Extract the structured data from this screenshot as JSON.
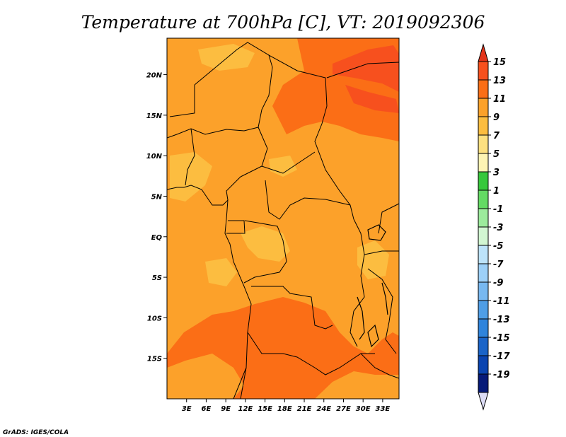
{
  "title": "Temperature at 700hPa [C], VT: 2019092306",
  "credit": "GrADS: IGES/COLA",
  "map": {
    "lon_range": [
      0,
      35.5
    ],
    "lat_range": [
      -20,
      24.5
    ],
    "y_ticks": [
      {
        "lat": 20,
        "label": "20N"
      },
      {
        "lat": 15,
        "label": "15N"
      },
      {
        "lat": 10,
        "label": "10N"
      },
      {
        "lat": 5,
        "label": "5N"
      },
      {
        "lat": 0,
        "label": "EQ"
      },
      {
        "lat": -5,
        "label": "5S"
      },
      {
        "lat": -10,
        "label": "10S"
      },
      {
        "lat": -15,
        "label": "15S"
      }
    ],
    "x_ticks": [
      {
        "lon": 3,
        "label": "3E"
      },
      {
        "lon": 6,
        "label": "6E"
      },
      {
        "lon": 9,
        "label": "9E"
      },
      {
        "lon": 12,
        "label": "12E"
      },
      {
        "lon": 15,
        "label": "15E"
      },
      {
        "lon": 18,
        "label": "18E"
      },
      {
        "lon": 21,
        "label": "21E"
      },
      {
        "lon": 24,
        "label": "24E"
      },
      {
        "lon": 27,
        "label": "27E"
      },
      {
        "lon": 30,
        "label": "30E"
      },
      {
        "lon": 33,
        "label": "33E"
      }
    ],
    "background_color": "#fca12a"
  },
  "colorbar": {
    "labels": [
      "15",
      "13",
      "11",
      "9",
      "7",
      "5",
      "3",
      "1",
      "-1",
      "-3",
      "-5",
      "-7",
      "-9",
      "-11",
      "-13",
      "-15",
      "-17",
      "-19"
    ],
    "colors": [
      "#f7501e",
      "#fb6e16",
      "#fca12a",
      "#fcbd40",
      "#fde080",
      "#fef4b4",
      "#37c83c",
      "#64db64",
      "#9ceb9c",
      "#d2f6d2",
      "#bde3fa",
      "#9dd0f8",
      "#78b8f0",
      "#4f9ee6",
      "#2f84dc",
      "#1a64c8",
      "#0a44b0",
      "#061a78"
    ],
    "top_arrow_color": "#e3341a",
    "bottom_arrow_color": "#dcdcf5"
  }
}
